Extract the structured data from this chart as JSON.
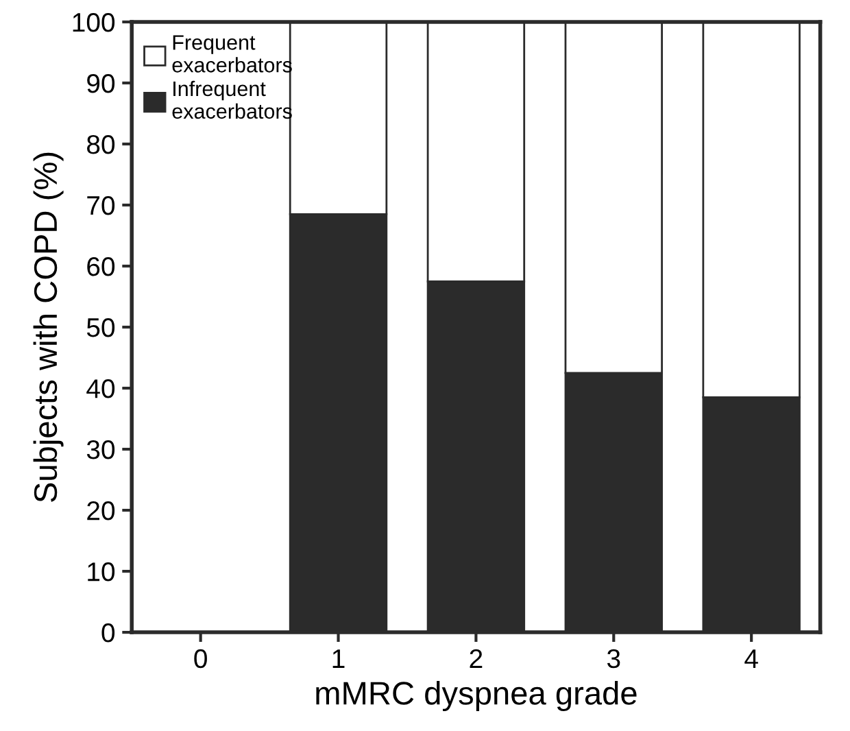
{
  "chart_data": {
    "type": "bar",
    "stacked": true,
    "xlabel": "mMRC dyspnea grade",
    "ylabel": "Subjects with COPD (%)",
    "categories": [
      "0",
      "1",
      "2",
      "3",
      "4"
    ],
    "series": [
      {
        "name": "Infrequent exacerbators",
        "color": "#2b2b2b",
        "values": [
          null,
          68.5,
          57.5,
          42.5,
          38.5
        ]
      },
      {
        "name": "Frequent exacerbators",
        "color": "#ffffff",
        "values": [
          null,
          31.5,
          42.5,
          57.5,
          61.5
        ]
      }
    ],
    "ylim": [
      0,
      100
    ],
    "yticks": [
      0,
      10,
      20,
      30,
      40,
      50,
      60,
      70,
      80,
      90,
      100
    ],
    "grid": false,
    "legend": "top left"
  }
}
